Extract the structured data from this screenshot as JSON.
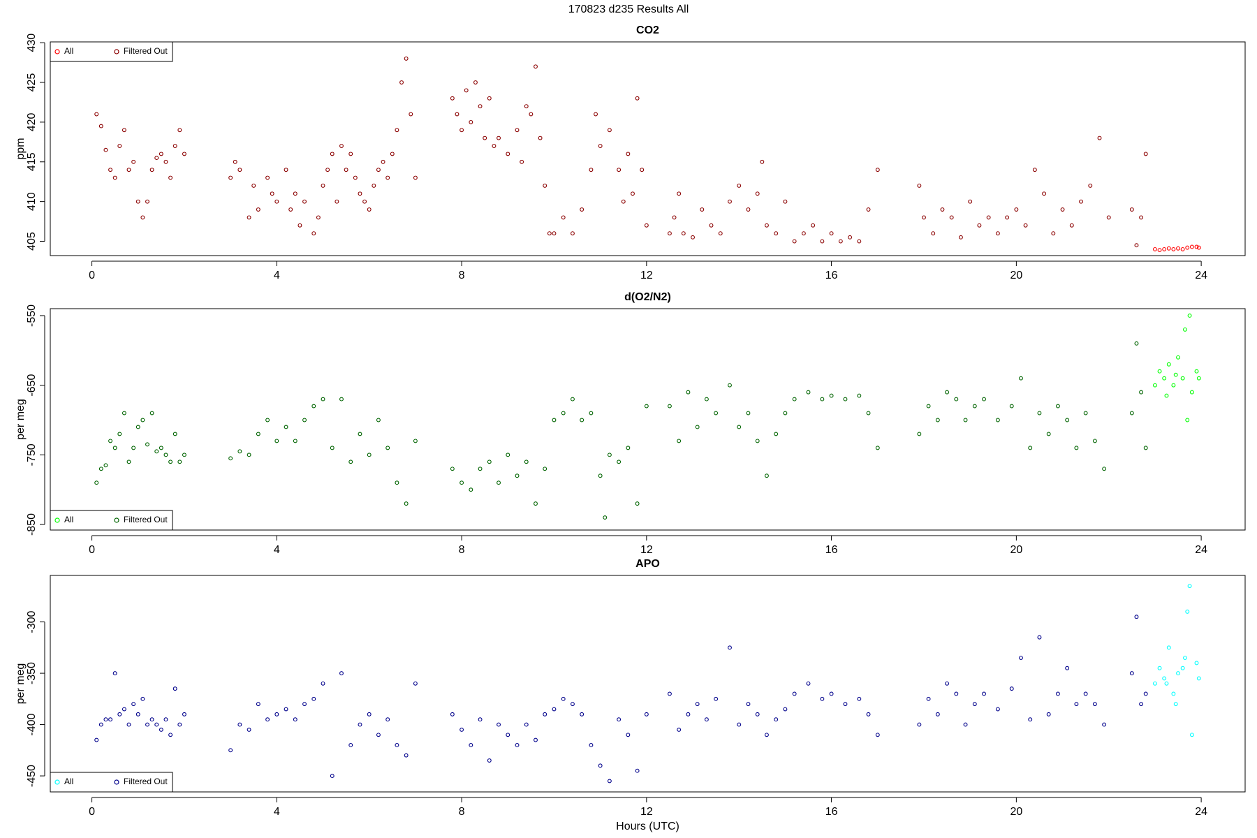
{
  "title": "170823   d235   Results All",
  "chart_data": [
    {
      "type": "scatter",
      "title": "CO2",
      "ylabel": "ppm",
      "legend": "top-left",
      "xlim": [
        -0.9,
        24.95
      ],
      "xticks": [
        0,
        4,
        8,
        12,
        16,
        20,
        24
      ],
      "ylim": [
        403.2,
        430.1
      ],
      "yticks": [
        405,
        410,
        415,
        420,
        425,
        430
      ],
      "series": [
        {
          "name": "All",
          "color": "#ff0000",
          "x": [
            23.0,
            23.1,
            23.2,
            23.3,
            23.4,
            23.5,
            23.6,
            23.7,
            23.8,
            23.9,
            23.95
          ],
          "values": [
            404.0,
            403.9,
            404.0,
            404.1,
            404.0,
            404.1,
            404.0,
            404.2,
            404.3,
            404.3,
            404.2
          ]
        },
        {
          "name": "Filtered Out",
          "color": "#8b0000",
          "x": [
            0.1,
            0.2,
            0.3,
            0.4,
            0.5,
            0.6,
            0.7,
            0.8,
            0.9,
            1.0,
            1.1,
            1.2,
            1.3,
            1.4,
            1.5,
            1.6,
            1.7,
            1.8,
            1.9,
            2.0,
            3.0,
            3.1,
            3.2,
            3.4,
            3.5,
            3.6,
            3.8,
            3.9,
            4.0,
            4.2,
            4.3,
            4.4,
            4.5,
            4.6,
            4.8,
            4.9,
            5.0,
            5.1,
            5.2,
            5.3,
            5.4,
            5.5,
            5.6,
            5.7,
            5.8,
            5.9,
            6.0,
            6.1,
            6.2,
            6.3,
            6.4,
            6.5,
            6.6,
            6.7,
            6.8,
            6.9,
            7.0,
            7.8,
            7.9,
            8.0,
            8.1,
            8.2,
            8.3,
            8.4,
            8.5,
            8.6,
            8.7,
            8.8,
            9.0,
            9.2,
            9.3,
            9.4,
            9.5,
            9.6,
            9.7,
            9.8,
            9.9,
            10.0,
            10.2,
            10.4,
            10.6,
            10.8,
            10.9,
            11.0,
            11.2,
            11.4,
            11.5,
            11.6,
            11.7,
            11.8,
            11.9,
            12.0,
            12.5,
            12.6,
            12.7,
            12.8,
            13.0,
            13.2,
            13.4,
            13.6,
            13.8,
            14.0,
            14.2,
            14.4,
            14.5,
            14.6,
            14.8,
            15.0,
            15.2,
            15.4,
            15.6,
            15.8,
            16.0,
            16.2,
            16.4,
            16.6,
            16.8,
            17.0,
            17.9,
            18.0,
            18.2,
            18.4,
            18.6,
            18.8,
            19.0,
            19.2,
            19.4,
            19.6,
            19.8,
            20.0,
            20.2,
            20.4,
            20.6,
            20.8,
            21.0,
            21.2,
            21.4,
            21.6,
            21.8,
            22.0,
            22.5,
            22.6,
            22.7,
            22.8
          ],
          "values": [
            421,
            419.5,
            416.5,
            414,
            413,
            417,
            419,
            414,
            415,
            410,
            408,
            410,
            414,
            415.5,
            416,
            415,
            413,
            417,
            419,
            416,
            413,
            415,
            414,
            408,
            412,
            409,
            413,
            411,
            410,
            414,
            409,
            411,
            407,
            410,
            406,
            408,
            412,
            414,
            416,
            410,
            417,
            414,
            416,
            413,
            411,
            410,
            409,
            412,
            414,
            415,
            413,
            416,
            419,
            425,
            428,
            421,
            413,
            423,
            421,
            419,
            424,
            420,
            425,
            422,
            418,
            423,
            417,
            418,
            416,
            419,
            415,
            422,
            421,
            427,
            418,
            412,
            406,
            406,
            408,
            406,
            409,
            414,
            421,
            417,
            419,
            414,
            410,
            416,
            411,
            423,
            414,
            407,
            406,
            408,
            411,
            406,
            405.5,
            409,
            407,
            406,
            410,
            412,
            409,
            411,
            415,
            407,
            406,
            410,
            405,
            406,
            407,
            405,
            406,
            405,
            405.5,
            405,
            409,
            414,
            412,
            408,
            406,
            409,
            408,
            405.5,
            410,
            407,
            408,
            406,
            408,
            409,
            407,
            414,
            411,
            406,
            409,
            407,
            410,
            412,
            418,
            408,
            409,
            404.5,
            408,
            416
          ]
        }
      ]
    },
    {
      "type": "scatter",
      "title": "d(O2/N2)",
      "ylabel": "per meg",
      "legend": "bottom-left",
      "xlim": [
        -0.9,
        24.95
      ],
      "xticks": [
        0,
        4,
        8,
        12,
        16,
        20,
        24
      ],
      "ylim": [
        -858,
        -540
      ],
      "yticks": [
        -550,
        -650,
        -750,
        -850
      ],
      "series": [
        {
          "name": "All",
          "color": "#00ff00",
          "x": [
            23.0,
            23.1,
            23.2,
            23.25,
            23.3,
            23.4,
            23.45,
            23.5,
            23.6,
            23.65,
            23.7,
            23.75,
            23.8,
            23.9,
            23.95
          ],
          "values": [
            -650,
            -630,
            -640,
            -665,
            -620,
            -650,
            -635,
            -610,
            -640,
            -570,
            -700,
            -550,
            -660,
            -630,
            -640
          ]
        },
        {
          "name": "Filtered Out",
          "color": "#006400",
          "x": [
            0.1,
            0.2,
            0.3,
            0.4,
            0.5,
            0.6,
            0.7,
            0.8,
            0.9,
            1.0,
            1.1,
            1.2,
            1.3,
            1.4,
            1.5,
            1.6,
            1.7,
            1.8,
            1.9,
            2.0,
            3.0,
            3.2,
            3.4,
            3.6,
            3.8,
            4.0,
            4.2,
            4.4,
            4.6,
            4.8,
            5.0,
            5.2,
            5.4,
            5.6,
            5.8,
            6.0,
            6.2,
            6.4,
            6.6,
            6.8,
            7.0,
            7.8,
            8.0,
            8.2,
            8.4,
            8.6,
            8.8,
            9.0,
            9.2,
            9.4,
            9.6,
            9.8,
            10.0,
            10.2,
            10.4,
            10.6,
            10.8,
            11.0,
            11.1,
            11.2,
            11.4,
            11.6,
            11.8,
            12.0,
            12.5,
            12.7,
            12.9,
            13.1,
            13.3,
            13.5,
            13.8,
            14.0,
            14.2,
            14.4,
            14.6,
            14.8,
            15.0,
            15.2,
            15.5,
            15.8,
            16.0,
            16.3,
            16.6,
            16.8,
            17.0,
            17.9,
            18.1,
            18.3,
            18.5,
            18.7,
            18.9,
            19.1,
            19.3,
            19.6,
            19.9,
            20.1,
            20.3,
            20.5,
            20.7,
            20.9,
            21.1,
            21.3,
            21.5,
            21.7,
            21.9,
            22.5,
            22.6,
            22.7,
            22.8
          ],
          "values": [
            -790,
            -770,
            -765,
            -730,
            -740,
            -720,
            -690,
            -760,
            -740,
            -710,
            -700,
            -735,
            -690,
            -745,
            -740,
            -750,
            -760,
            -720,
            -760,
            -750,
            -755,
            -745,
            -750,
            -720,
            -700,
            -730,
            -710,
            -730,
            -700,
            -680,
            -670,
            -740,
            -670,
            -760,
            -720,
            -750,
            -700,
            -740,
            -790,
            -820,
            -730,
            -770,
            -790,
            -800,
            -770,
            -760,
            -790,
            -750,
            -780,
            -760,
            -820,
            -770,
            -700,
            -690,
            -670,
            -700,
            -690,
            -780,
            -840,
            -750,
            -760,
            -740,
            -820,
            -680,
            -680,
            -730,
            -660,
            -710,
            -670,
            -690,
            -650,
            -710,
            -690,
            -730,
            -780,
            -720,
            -690,
            -670,
            -660,
            -670,
            -665,
            -670,
            -665,
            -690,
            -740,
            -720,
            -680,
            -700,
            -660,
            -670,
            -700,
            -680,
            -670,
            -700,
            -680,
            -640,
            -740,
            -690,
            -720,
            -680,
            -700,
            -740,
            -690,
            -730,
            -770,
            -690,
            -590,
            -660,
            -740
          ]
        }
      ]
    },
    {
      "type": "scatter",
      "title": "APO",
      "ylabel": "per meg",
      "xlabel": "Hours (UTC)",
      "legend": "bottom-left",
      "xlim": [
        -0.9,
        24.95
      ],
      "xticks": [
        0,
        4,
        8,
        12,
        16,
        20,
        24
      ],
      "ylim": [
        -465.6,
        -254.7
      ],
      "yticks": [
        -300,
        -350,
        -400,
        -450
      ],
      "series": [
        {
          "name": "All",
          "color": "#00ffff",
          "x": [
            23.0,
            23.1,
            23.2,
            23.25,
            23.3,
            23.4,
            23.45,
            23.5,
            23.6,
            23.65,
            23.7,
            23.75,
            23.8,
            23.9,
            23.95
          ],
          "values": [
            -360,
            -345,
            -355,
            -360,
            -325,
            -370,
            -380,
            -350,
            -345,
            -335,
            -290,
            -265,
            -410,
            -340,
            -355
          ]
        },
        {
          "name": "Filtered Out",
          "color": "#00008b",
          "x": [
            0.1,
            0.2,
            0.3,
            0.4,
            0.5,
            0.6,
            0.7,
            0.8,
            0.9,
            1.0,
            1.1,
            1.2,
            1.3,
            1.4,
            1.5,
            1.6,
            1.7,
            1.8,
            1.9,
            2.0,
            3.0,
            3.2,
            3.4,
            3.6,
            3.8,
            4.0,
            4.2,
            4.4,
            4.6,
            4.8,
            5.0,
            5.2,
            5.4,
            5.6,
            5.8,
            6.0,
            6.2,
            6.4,
            6.6,
            6.8,
            7.0,
            7.8,
            8.0,
            8.2,
            8.4,
            8.6,
            8.8,
            9.0,
            9.2,
            9.4,
            9.6,
            9.8,
            10.0,
            10.2,
            10.4,
            10.6,
            10.8,
            11.0,
            11.2,
            11.4,
            11.6,
            11.8,
            12.0,
            12.5,
            12.7,
            12.9,
            13.1,
            13.3,
            13.5,
            13.8,
            14.0,
            14.2,
            14.4,
            14.6,
            14.8,
            15.0,
            15.2,
            15.5,
            15.8,
            16.0,
            16.3,
            16.6,
            16.8,
            17.0,
            17.9,
            18.1,
            18.3,
            18.5,
            18.7,
            18.9,
            19.1,
            19.3,
            19.6,
            19.9,
            20.1,
            20.3,
            20.5,
            20.7,
            20.9,
            21.1,
            21.3,
            21.5,
            21.7,
            21.9,
            22.5,
            22.6,
            22.7,
            22.8
          ],
          "values": [
            -415,
            -400,
            -395,
            -395,
            -350,
            -390,
            -385,
            -400,
            -380,
            -390,
            -375,
            -400,
            -395,
            -400,
            -405,
            -395,
            -410,
            -365,
            -400,
            -390,
            -425,
            -400,
            -405,
            -380,
            -395,
            -390,
            -385,
            -395,
            -380,
            -375,
            -360,
            -450,
            -350,
            -420,
            -400,
            -390,
            -410,
            -395,
            -420,
            -430,
            -360,
            -390,
            -405,
            -420,
            -395,
            -435,
            -400,
            -410,
            -420,
            -400,
            -415,
            -390,
            -385,
            -375,
            -380,
            -390,
            -420,
            -440,
            -455,
            -395,
            -410,
            -445,
            -390,
            -370,
            -405,
            -390,
            -380,
            -395,
            -375,
            -325,
            -400,
            -380,
            -390,
            -410,
            -395,
            -385,
            -370,
            -360,
            -375,
            -370,
            -380,
            -375,
            -390,
            -410,
            -400,
            -375,
            -390,
            -360,
            -370,
            -400,
            -380,
            -370,
            -385,
            -365,
            -335,
            -395,
            -315,
            -390,
            -370,
            -345,
            -380,
            -370,
            -380,
            -400,
            -350,
            -295,
            -380,
            -370
          ]
        }
      ]
    }
  ]
}
